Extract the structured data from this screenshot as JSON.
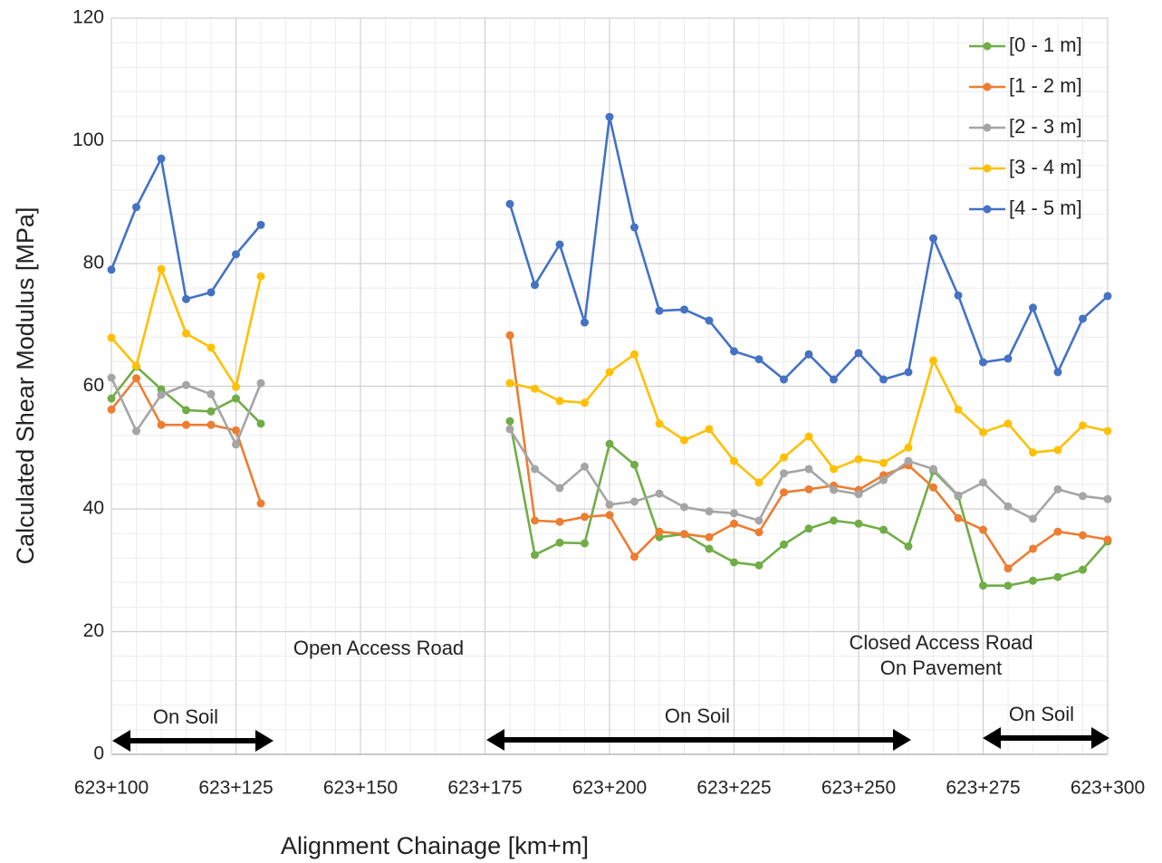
{
  "chart_data": {
    "type": "line",
    "xlabel": "Alignment Chainage [km+m]",
    "ylabel": "Calculated Shear Modulus [MPa]",
    "x": [
      623100,
      623105,
      623110,
      623115,
      623120,
      623125,
      623130,
      623135,
      623140,
      623145,
      623150,
      623155,
      623160,
      623165,
      623170,
      623175,
      623180,
      623185,
      623190,
      623195,
      623200,
      623205,
      623210,
      623215,
      623220,
      623225,
      623230,
      623235,
      623240,
      623245,
      623250,
      623255,
      623260,
      623265,
      623270,
      623275,
      623280,
      623285,
      623290,
      623295,
      623300
    ],
    "xlim": [
      623100,
      623300
    ],
    "xticks": [
      {
        "value": 623100,
        "label": "623+100"
      },
      {
        "value": 623125,
        "label": "623+125"
      },
      {
        "value": 623150,
        "label": "623+150"
      },
      {
        "value": 623175,
        "label": "623+175"
      },
      {
        "value": 623200,
        "label": "623+200"
      },
      {
        "value": 623225,
        "label": "623+225"
      },
      {
        "value": 623250,
        "label": "623+250"
      },
      {
        "value": 623275,
        "label": "623+275"
      },
      {
        "value": 623300,
        "label": "623+300"
      }
    ],
    "ylim": [
      0,
      120
    ],
    "yticks": [
      0,
      20,
      40,
      60,
      80,
      100,
      120
    ],
    "grid": true,
    "legend": "top-right",
    "annotations": [
      "Open Access Road",
      "Closed Access Road",
      "On Pavement",
      "On Soil",
      "On Soil",
      "On Soil"
    ],
    "series": [
      {
        "name": "[0 - 1 m]",
        "color": "#70ad47",
        "values": [
          58.0,
          63.2,
          59.5,
          56.1,
          55.9,
          58.0,
          53.9,
          null,
          null,
          null,
          null,
          null,
          null,
          null,
          null,
          null,
          54.3,
          32.5,
          34.5,
          34.4,
          50.6,
          47.2,
          35.4,
          35.9,
          33.5,
          31.3,
          30.8,
          34.2,
          36.8,
          38.1,
          37.6,
          36.6,
          33.9,
          46.2,
          42.1,
          27.5,
          27.5,
          28.3,
          28.9,
          30.1,
          34.7
        ]
      },
      {
        "name": "[1 - 2 m]",
        "color": "#ed7d31",
        "values": [
          56.2,
          61.3,
          53.7,
          53.7,
          53.7,
          52.8,
          40.9,
          null,
          null,
          null,
          null,
          null,
          null,
          null,
          null,
          null,
          68.3,
          38.1,
          37.9,
          38.7,
          39.0,
          32.2,
          36.3,
          35.9,
          35.4,
          37.6,
          36.2,
          42.7,
          43.2,
          43.8,
          43.1,
          45.5,
          47.1,
          43.5,
          38.5,
          36.6,
          30.3,
          33.5,
          36.3,
          35.7,
          35.0
        ]
      },
      {
        "name": "[2 - 3 m]",
        "color": "#a5a5a5",
        "values": [
          61.4,
          52.7,
          58.6,
          60.2,
          58.7,
          50.5,
          60.5,
          null,
          null,
          null,
          null,
          null,
          null,
          null,
          null,
          null,
          53.0,
          46.5,
          43.4,
          46.9,
          40.7,
          41.2,
          42.5,
          40.3,
          39.6,
          39.3,
          38.1,
          45.8,
          46.5,
          43.1,
          42.4,
          44.7,
          47.8,
          46.5,
          42.2,
          44.3,
          40.4,
          38.4,
          43.2,
          42.1,
          41.6
        ]
      },
      {
        "name": "[3 - 4 m]",
        "color": "#ffc000",
        "values": [
          67.9,
          63.3,
          79.1,
          68.6,
          66.3,
          59.9,
          77.9,
          null,
          null,
          null,
          null,
          null,
          null,
          null,
          null,
          null,
          60.5,
          59.6,
          57.6,
          57.3,
          62.3,
          65.2,
          53.9,
          51.2,
          53.0,
          47.8,
          44.3,
          48.4,
          51.8,
          46.5,
          48.1,
          47.5,
          50.0,
          64.2,
          56.2,
          52.5,
          53.9,
          49.2,
          49.6,
          53.6,
          52.7
        ]
      },
      {
        "name": "[4 - 5 m]",
        "color": "#4472c4",
        "values": [
          79.0,
          89.2,
          97.1,
          74.2,
          75.3,
          81.5,
          86.3,
          null,
          null,
          null,
          null,
          null,
          null,
          null,
          null,
          null,
          89.7,
          76.5,
          83.1,
          70.4,
          103.9,
          85.9,
          72.3,
          72.5,
          70.7,
          65.7,
          64.4,
          61.1,
          65.2,
          61.1,
          65.4,
          61.1,
          62.3,
          84.1,
          74.8,
          63.9,
          64.5,
          72.8,
          62.3,
          71.0,
          74.7
        ]
      }
    ]
  }
}
